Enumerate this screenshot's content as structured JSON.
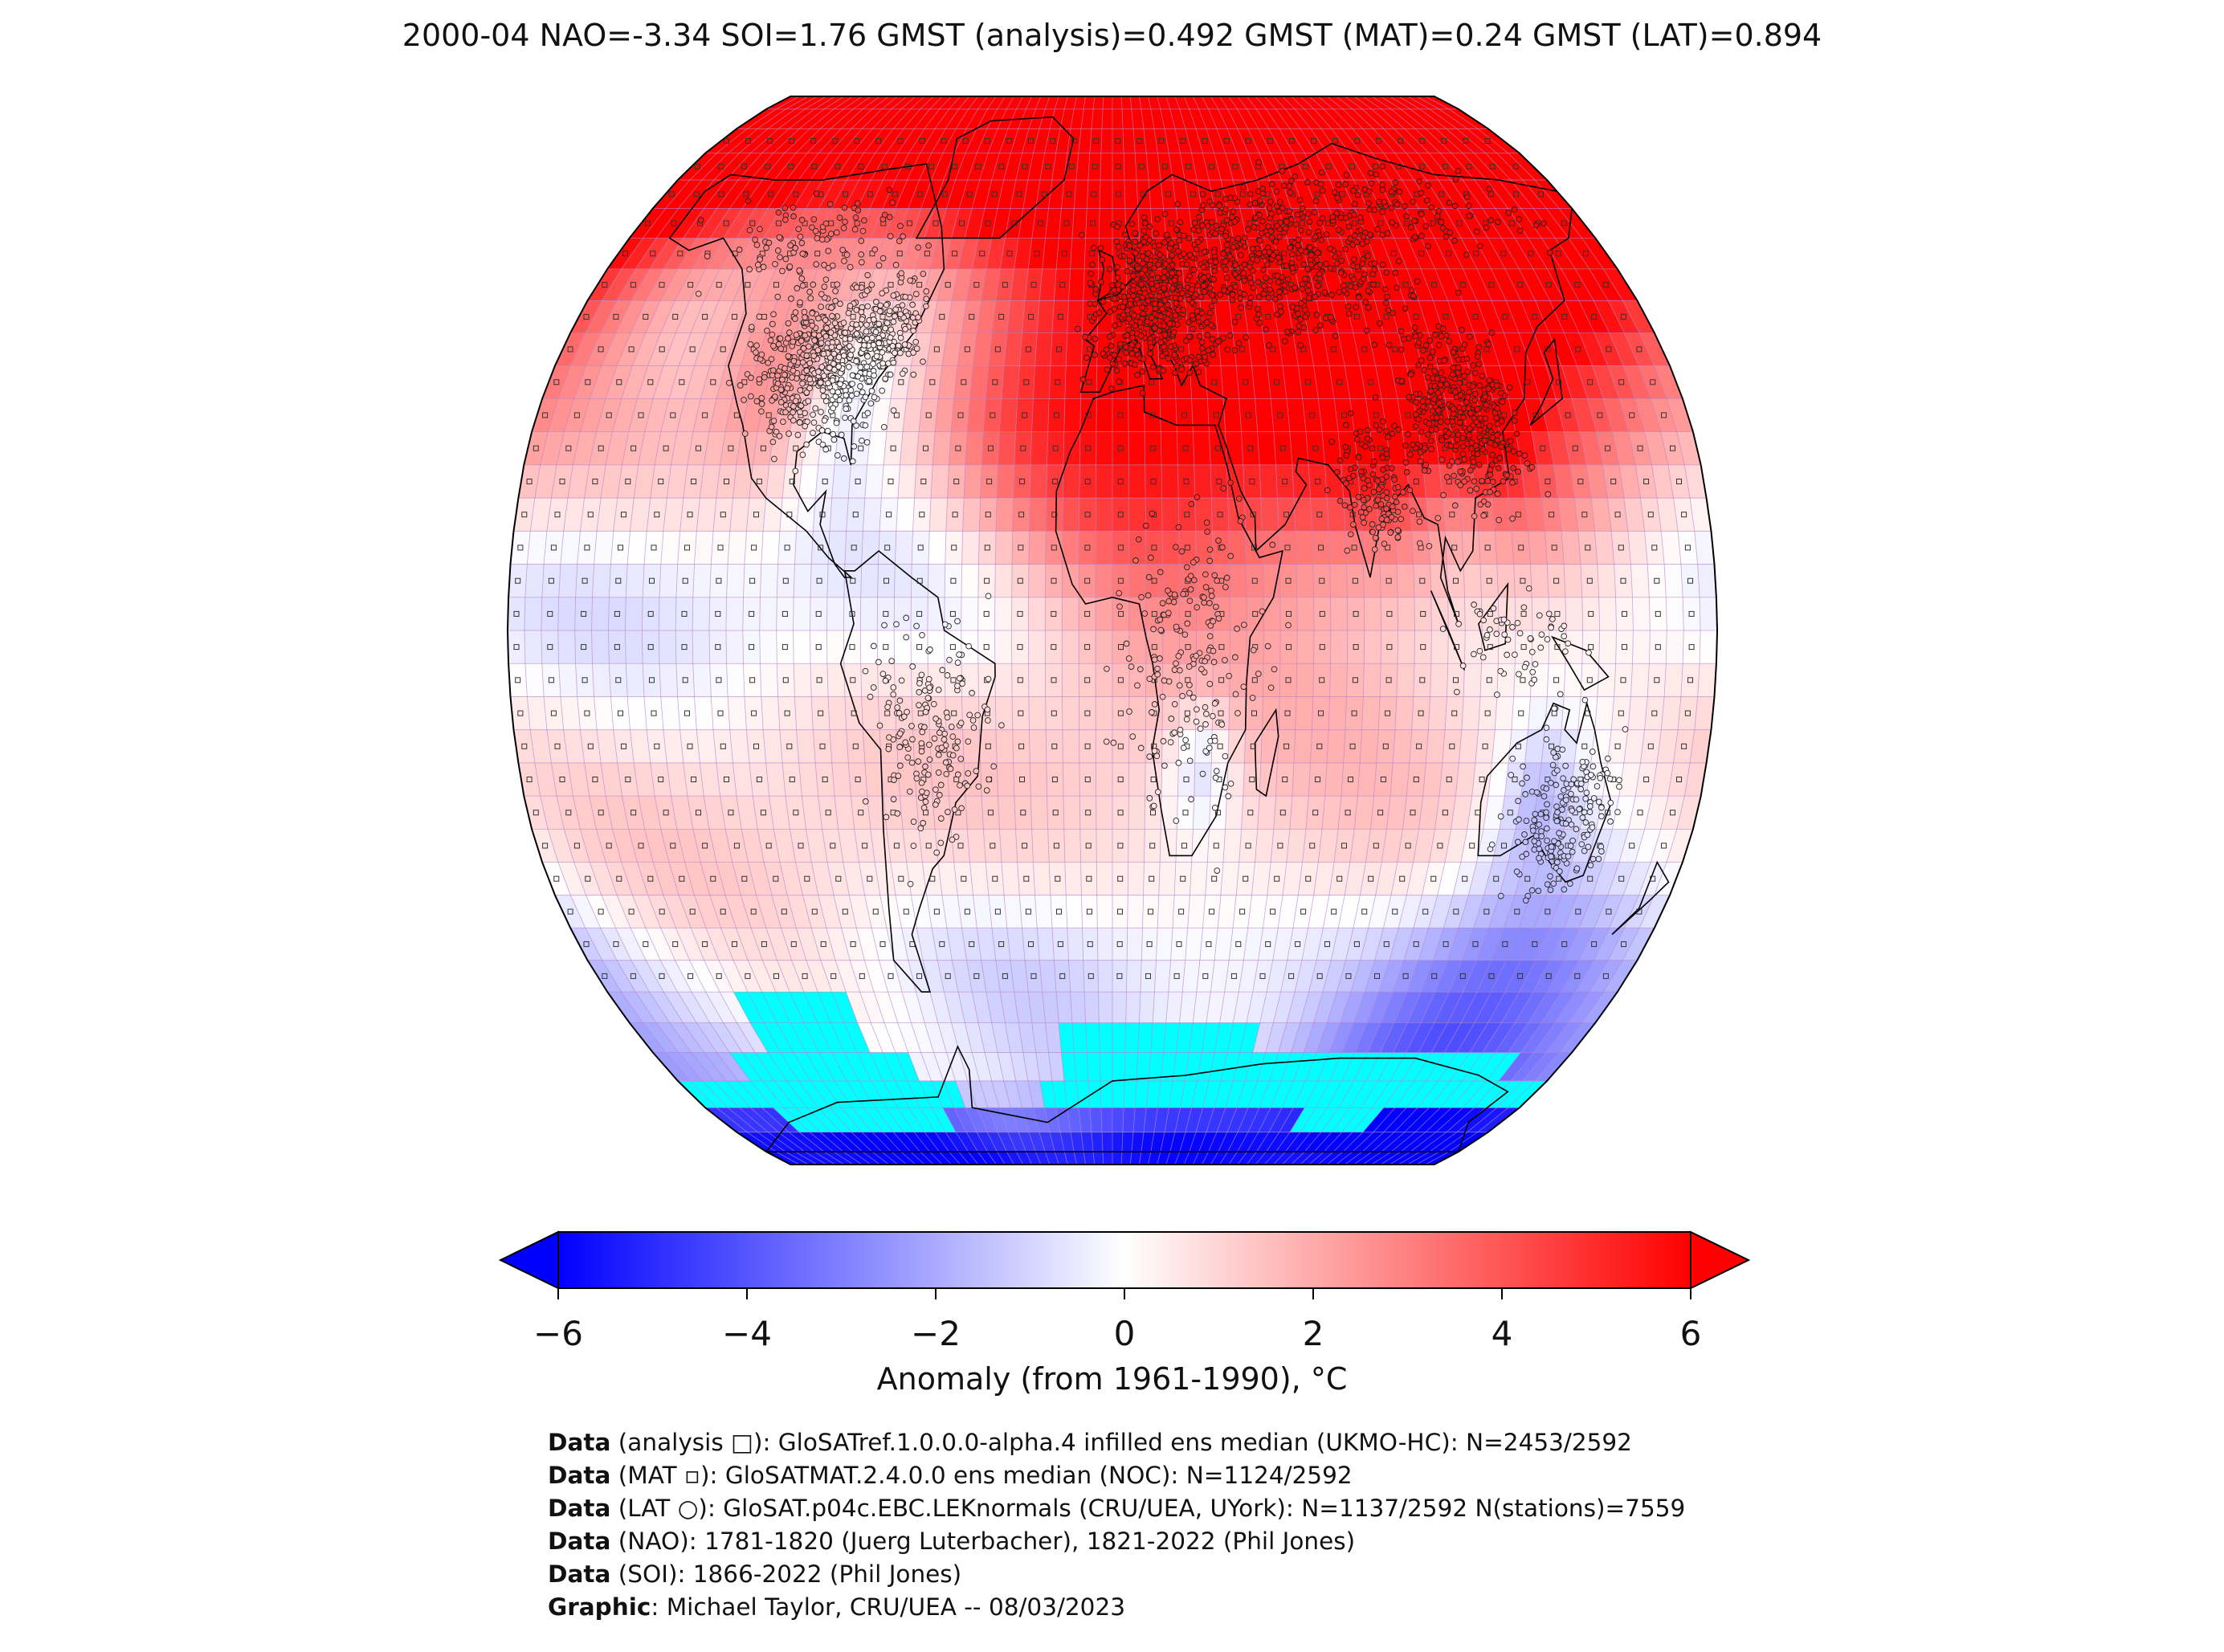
{
  "title": "2000-04 NAO=-3.34 SOI=1.76 GMST (analysis)=0.492 GMST (MAT)=0.24 GMST (LAT)=0.894",
  "colorbar": {
    "label": "Anomaly (from 1961-1990), °C",
    "min": -6,
    "max": 6,
    "extend": "both",
    "ticks": [
      "−6",
      "−4",
      "−2",
      "0",
      "2",
      "4",
      "6"
    ],
    "colors": {
      "low": "#0000ff",
      "mid": "#ffffff",
      "high": "#ff0000"
    }
  },
  "map": {
    "projection": "Robinson",
    "grid_resolution_deg": 5,
    "missing_color": "#00ffff",
    "gridline_color": "#b482c8",
    "coastline_color": "#000000",
    "anomaly_bands": [
      {
        "lat": 80,
        "value": 1.6
      },
      {
        "lat": 70,
        "value": 1.1
      },
      {
        "lat": 60,
        "value": 0.8
      },
      {
        "lat": 50,
        "value": 0.6
      },
      {
        "lat": 40,
        "value": 0.9
      },
      {
        "lat": 30,
        "value": 1.2
      },
      {
        "lat": 20,
        "value": 0.6
      },
      {
        "lat": 10,
        "value": -0.3
      },
      {
        "lat": 0,
        "value": -0.4
      },
      {
        "lat": -10,
        "value": 0.3
      },
      {
        "lat": -20,
        "value": 0.9
      },
      {
        "lat": -30,
        "value": 1.0
      },
      {
        "lat": -40,
        "value": 0.7
      },
      {
        "lat": -50,
        "value": 0.2
      },
      {
        "lat": -60,
        "value": 0.5
      },
      {
        "lat": -70,
        "value": 0.8
      },
      {
        "lat": -80,
        "value": -1.6
      },
      {
        "lat": -90,
        "value": -1.8
      }
    ],
    "hotspots": [
      {
        "lon": 60,
        "lat": 57,
        "value": 4.8,
        "radius": 40
      },
      {
        "lon": 110,
        "lat": 62,
        "value": 3.6,
        "radius": 35
      },
      {
        "lon": 140,
        "lat": 72,
        "value": 3.8,
        "radius": 25
      },
      {
        "lon": -40,
        "lat": 75,
        "value": 4.2,
        "radius": 15
      },
      {
        "lon": 5,
        "lat": 27,
        "value": 2.8,
        "radius": 25
      },
      {
        "lon": -105,
        "lat": 40,
        "value": 2.4,
        "radius": 12
      },
      {
        "lon": -30,
        "lat": 40,
        "value": 2.0,
        "radius": 18
      },
      {
        "lon": 115,
        "lat": 32,
        "value": 2.2,
        "radius": 8
      }
    ],
    "coldspots": [
      {
        "lon": -85,
        "lat": 38,
        "value": -2.0,
        "radius": 12
      },
      {
        "lon": -45,
        "lat": 55,
        "value": -1.8,
        "radius": 15
      },
      {
        "lon": 105,
        "lat": 22,
        "value": -1.6,
        "radius": 10
      },
      {
        "lon": 140,
        "lat": -57,
        "value": -2.6,
        "radius": 20
      },
      {
        "lon": 130,
        "lat": -72,
        "value": -2.4,
        "radius": 25
      },
      {
        "lon": 130,
        "lat": -25,
        "value": -1.6,
        "radius": 8
      },
      {
        "lon": 27,
        "lat": -20,
        "value": -1.8,
        "radius": 7
      },
      {
        "lon": -10,
        "lat": -75,
        "value": -1.4,
        "radius": 30
      }
    ],
    "missing_regions": [
      {
        "lon_min": -135,
        "lon_max": -95,
        "lat_min": -65,
        "lat_max": -55
      },
      {
        "lon_min": -150,
        "lon_max": -80,
        "lat_min": -70,
        "lat_max": -65
      },
      {
        "lon_min": -180,
        "lon_max": -65,
        "lat_min": -75,
        "lat_max": -70
      },
      {
        "lon_min": -150,
        "lon_max": -75,
        "lat_min": -80,
        "lat_max": -75
      },
      {
        "lon_min": -20,
        "lon_max": 55,
        "lat_min": -70,
        "lat_max": -60
      },
      {
        "lon_min": -30,
        "lon_max": 180,
        "lat_min": -75,
        "lat_max": -70
      },
      {
        "lon_min": 55,
        "lon_max": 160,
        "lat_min": -70,
        "lat_max": -65
      },
      {
        "lon_min": 85,
        "lon_max": 120,
        "lat_min": -80,
        "lat_max": -75
      }
    ]
  },
  "credits": [
    {
      "label": "Data",
      "text": " (analysis □): GloSATref.1.0.0.0-alpha.4 infilled ens median (UKMO-HC): N=2453/2592"
    },
    {
      "label": "Data",
      "text": " (MAT ▫): GloSATMAT.2.4.0.0 ens median (NOC): N=1124/2592"
    },
    {
      "label": "Data",
      "text": " (LAT ○): GloSAT.p04c.EBC.LEKnormals (CRU/UEA, UYork): N=1137/2592 N(stations)=7559"
    },
    {
      "label": "Data",
      "text": " (NAO): 1781-1820 (Juerg Luterbacher), 1821-2022 (Phil Jones)"
    },
    {
      "label": "Data",
      "text": " (SOI): 1866-2022 (Phil Jones)"
    },
    {
      "label": "Graphic",
      "text": ": Michael Taylor, CRU/UEA -- 08/03/2023"
    }
  ]
}
